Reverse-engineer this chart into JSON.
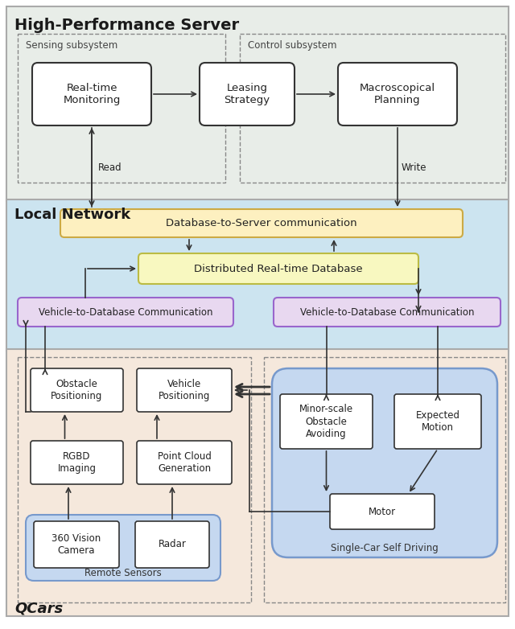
{
  "bg_server": "#e8ede8",
  "bg_network": "#cce4f0",
  "bg_qcars": "#f5e8dc",
  "bg_single_car": "#c5d8f0",
  "bg_remote_sensors": "#c5d8f0",
  "box_white": "#ffffff",
  "box_yellow_db2server": "#fdf0c0",
  "box_yellow_db": "#f8f8c0",
  "box_purple": "#e8d8f0",
  "dashed_color": "#888888",
  "arrow_color": "#333333",
  "label_server": "High-Performance Server",
  "label_network": "Local Network",
  "label_qcars": "QCars",
  "label_sensing": "Sensing subsystem",
  "label_control": "Control subsystem",
  "label_rt_monitor": "Real-time\nMonitoring",
  "label_leasing": "Leasing\nStrategy",
  "label_macro": "Macroscopical\nPlanning",
  "label_db2server": "Database-to-Server communication",
  "label_db": "Distributed Real-time Database",
  "label_v2db_left": "Vehicle-to-Database Communication",
  "label_v2db_right": "Vehicle-to-Database Communication",
  "label_obstacle_pos": "Obstacle\nPositioning",
  "label_vehicle_pos": "Vehicle\nPositioning",
  "label_rgbd": "RGBD\nImaging",
  "label_pointcloud": "Point Cloud\nGeneration",
  "label_360cam": "360 Vision\nCamera",
  "label_radar": "Radar",
  "label_remote_sensors": "Remote Sensors",
  "label_minor_obs": "Minor-scale\nObstacle\nAvoiding",
  "label_expected": "Expected\nMotion",
  "label_motor": "Motor",
  "label_single_car": "Single-Car Self Driving",
  "label_read": "Read",
  "label_write": "Write",
  "fig_w": 6.4,
  "fig_h": 7.82,
  "dpi": 100
}
